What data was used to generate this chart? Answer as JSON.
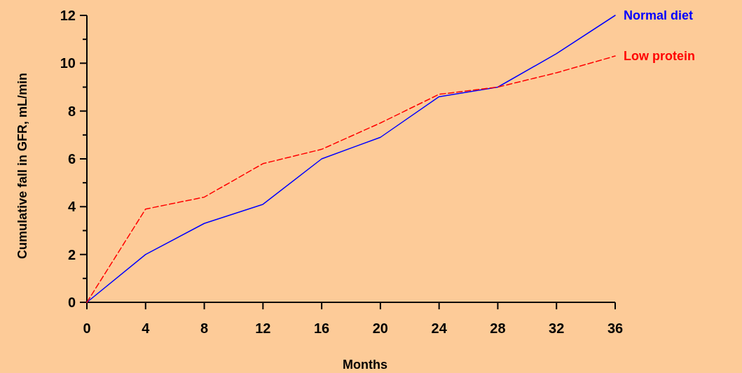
{
  "chart_data": {
    "type": "line",
    "xlabel": "Months",
    "ylabel": "Cumulative fall in GFR, mL/min",
    "x": [
      0,
      4,
      8,
      12,
      16,
      20,
      24,
      28,
      32,
      36
    ],
    "series": [
      {
        "name": "Normal diet",
        "color": "#0000ff",
        "line_style": "solid",
        "values": [
          0,
          2.0,
          3.3,
          4.1,
          6.0,
          6.9,
          8.6,
          9.0,
          10.4,
          12.0
        ]
      },
      {
        "name": "Low protein",
        "color": "#ff0000",
        "line_style": "dashed",
        "values": [
          0,
          3.9,
          4.4,
          5.8,
          6.4,
          7.5,
          8.7,
          9.0,
          9.6,
          10.3
        ]
      }
    ],
    "xlim": [
      0,
      36
    ],
    "xticks": [
      0,
      4,
      8,
      12,
      16,
      20,
      24,
      28,
      32,
      36
    ],
    "ylim": [
      0,
      12
    ],
    "yticks": [
      0,
      {
        "value": 1,
        "label": null
      },
      2,
      {
        "value": 3,
        "label": null
      },
      4,
      {
        "value": 5,
        "label": null
      },
      6,
      {
        "value": 7,
        "label": null
      },
      8,
      {
        "value": 9,
        "label": null
      },
      10,
      {
        "value": 11,
        "label": null
      },
      12
    ],
    "grid": false,
    "legend": false,
    "marker": "none"
  }
}
